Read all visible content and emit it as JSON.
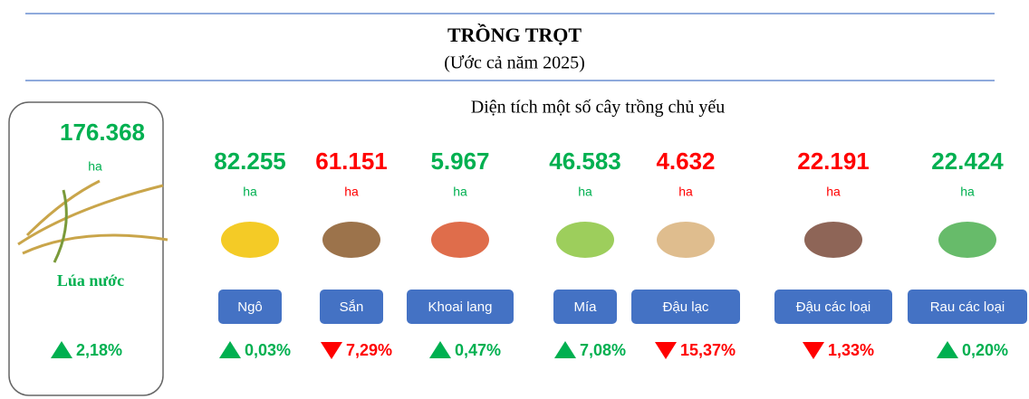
{
  "header": {
    "title": "TRỒNG TRỌT",
    "subtitle": "(Ước cả năm 2025)",
    "section_title": "Diện tích một số cây trồng chủ yếu"
  },
  "main": {
    "value": "176.368",
    "unit": "ha",
    "name": "Lúa nước",
    "change": "2,18%",
    "trend": "up"
  },
  "items": [
    {
      "value": "82.255",
      "unit": "ha",
      "name": "Ngô",
      "change": "0,03%",
      "trend": "up"
    },
    {
      "value": "61.151",
      "unit": "ha",
      "name": "Sắn",
      "change": "7,29%",
      "trend": "down"
    },
    {
      "value": "5.967",
      "unit": "ha",
      "name": "Khoai lang",
      "change": "0,47%",
      "trend": "up"
    },
    {
      "value": "46.583",
      "unit": "ha",
      "name": "Mía",
      "change": "7,08%",
      "trend": "up"
    },
    {
      "value": "4.632",
      "unit": "ha",
      "name": "Đậu lạc",
      "change": "15,37%",
      "trend": "down"
    },
    {
      "value": "22.191",
      "unit": "ha",
      "name": "Đậu các loại",
      "change": "1,33%",
      "trend": "down"
    },
    {
      "value": "22.424",
      "unit": "ha",
      "name": "Rau các loại",
      "change": "0,20%",
      "trend": "up"
    }
  ]
}
